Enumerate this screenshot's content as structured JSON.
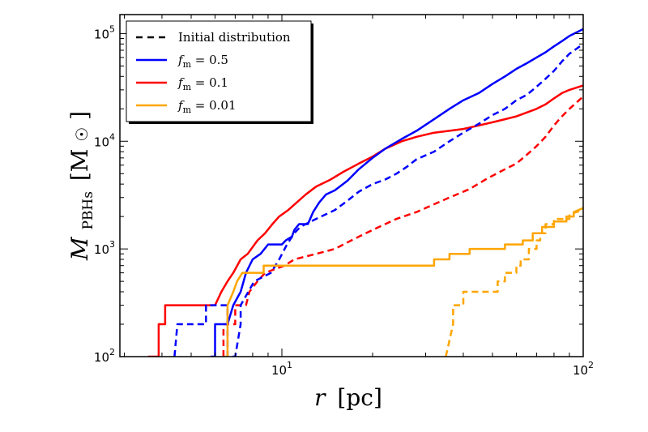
{
  "chart_data": {
    "type": "line",
    "xlabel": {
      "var": "r",
      "unit": "[pc]"
    },
    "ylabel": {
      "var": "M",
      "sub": "PBHs",
      "unit_open": "[M",
      "unit_sym": "☉",
      "unit_close": "]"
    },
    "xscale": "log",
    "yscale": "log",
    "xlim": [
      2.9,
      100
    ],
    "ylim": [
      100,
      150000
    ],
    "x_ticks": [
      {
        "value": 10,
        "base": "10",
        "exp": "1"
      },
      {
        "value": 100,
        "base": "10",
        "exp": "2"
      }
    ],
    "y_ticks": [
      {
        "value": 100,
        "base": "10",
        "exp": "2"
      },
      {
        "value": 1000,
        "base": "10",
        "exp": "3"
      },
      {
        "value": 10000,
        "base": "10",
        "exp": "4"
      },
      {
        "value": 100000,
        "base": "10",
        "exp": "5"
      }
    ],
    "legend": {
      "placement": "upper-left",
      "entries": [
        {
          "label": "Initial distribution",
          "style": "dashed",
          "color": "#000000"
        },
        {
          "label_var": "f",
          "label_sub": "m",
          "label_value": " = 0.5",
          "style": "solid",
          "color": "#0000ff"
        },
        {
          "label_var": "f",
          "label_sub": "m",
          "label_value": " = 0.1",
          "style": "solid",
          "color": "#ff0000"
        },
        {
          "label_var": "f",
          "label_sub": "m",
          "label_value": " = 0.01",
          "style": "solid",
          "color": "#ffa500"
        }
      ]
    },
    "series": [
      {
        "key": "fm0.1-evolved",
        "color": "#ff0000",
        "style": "solid",
        "points": [
          [
            3.6,
            100
          ],
          [
            3.9,
            100
          ],
          [
            3.9,
            200
          ],
          [
            4.1,
            200
          ],
          [
            4.1,
            300
          ],
          [
            6.0,
            300
          ],
          [
            6.3,
            400
          ],
          [
            6.6,
            500
          ],
          [
            6.9,
            600
          ],
          [
            7.3,
            800
          ],
          [
            7.7,
            900
          ],
          [
            8.3,
            1200
          ],
          [
            8.8,
            1400
          ],
          [
            9.3,
            1700
          ],
          [
            9.8,
            2000
          ],
          [
            10.5,
            2300
          ],
          [
            11.2,
            2700
          ],
          [
            12.0,
            3200
          ],
          [
            13.0,
            3800
          ],
          [
            14.5,
            4400
          ],
          [
            16.0,
            5200
          ],
          [
            18.0,
            6200
          ],
          [
            20.0,
            7200
          ],
          [
            22.0,
            8500
          ],
          [
            25.0,
            10000
          ],
          [
            28.0,
            11000
          ],
          [
            32.0,
            12000
          ],
          [
            36.0,
            12500
          ],
          [
            40.0,
            13000
          ],
          [
            45.0,
            14000
          ],
          [
            50.0,
            15000
          ],
          [
            55.0,
            16000
          ],
          [
            60.0,
            17000
          ],
          [
            65.0,
            18500
          ],
          [
            70.0,
            20000
          ],
          [
            75.0,
            22000
          ],
          [
            80.0,
            25000
          ],
          [
            85.0,
            28000
          ],
          [
            90.0,
            30000
          ],
          [
            100.0,
            33000
          ]
        ]
      },
      {
        "key": "fm0.1-initial",
        "color": "#ff0000",
        "style": "dashed",
        "points": [
          [
            6.4,
            100
          ],
          [
            6.4,
            200
          ],
          [
            7.0,
            200
          ],
          [
            7.0,
            300
          ],
          [
            7.6,
            300
          ],
          [
            7.8,
            400
          ],
          [
            8.3,
            500
          ],
          [
            8.8,
            600
          ],
          [
            10.2,
            700
          ],
          [
            11.0,
            800
          ],
          [
            13.0,
            900
          ],
          [
            15.0,
            1000
          ],
          [
            17.0,
            1200
          ],
          [
            19.0,
            1400
          ],
          [
            21.0,
            1600
          ],
          [
            24.0,
            1900
          ],
          [
            28.0,
            2200
          ],
          [
            32.0,
            2600
          ],
          [
            36.0,
            3000
          ],
          [
            42.0,
            3600
          ],
          [
            48.0,
            4500
          ],
          [
            55.0,
            5500
          ],
          [
            60.0,
            6200
          ],
          [
            65.0,
            7500
          ],
          [
            70.0,
            9000
          ],
          [
            75.0,
            11000
          ],
          [
            80.0,
            14000
          ],
          [
            85.0,
            17000
          ],
          [
            90.0,
            20000
          ],
          [
            100.0,
            26000
          ]
        ]
      },
      {
        "key": "fm0.5-evolved",
        "color": "#0000ff",
        "style": "solid",
        "points": [
          [
            5.8,
            100
          ],
          [
            6.0,
            100
          ],
          [
            6.0,
            200
          ],
          [
            6.6,
            200
          ],
          [
            6.9,
            300
          ],
          [
            7.3,
            400
          ],
          [
            7.6,
            600
          ],
          [
            8.0,
            800
          ],
          [
            8.5,
            900
          ],
          [
            9.0,
            1100
          ],
          [
            10.0,
            1100
          ],
          [
            10.3,
            1200
          ],
          [
            10.8,
            1300
          ],
          [
            11.0,
            1500
          ],
          [
            11.4,
            1700
          ],
          [
            12.2,
            1700
          ],
          [
            12.7,
            2200
          ],
          [
            13.3,
            2700
          ],
          [
            14.0,
            3200
          ],
          [
            15.0,
            3500
          ],
          [
            16.5,
            4300
          ],
          [
            18.0,
            5500
          ],
          [
            20.0,
            7000
          ],
          [
            22.0,
            8500
          ],
          [
            25.0,
            10500
          ],
          [
            28.0,
            12500
          ],
          [
            32.0,
            16000
          ],
          [
            36.0,
            20000
          ],
          [
            40.0,
            24000
          ],
          [
            45.0,
            28000
          ],
          [
            50.0,
            34000
          ],
          [
            55.0,
            40000
          ],
          [
            60.0,
            47000
          ],
          [
            65.0,
            53000
          ],
          [
            70.0,
            60000
          ],
          [
            75.0,
            67000
          ],
          [
            80.0,
            76000
          ],
          [
            85.0,
            85000
          ],
          [
            90.0,
            95000
          ],
          [
            100.0,
            110000
          ]
        ]
      },
      {
        "key": "fm0.5-initial",
        "color": "#0000ff",
        "style": "dashed",
        "points": [
          [
            4.4,
            100
          ],
          [
            4.5,
            200
          ],
          [
            5.6,
            200
          ],
          [
            5.6,
            300
          ],
          [
            6.6,
            300
          ],
          [
            6.6,
            100
          ],
          [
            7.0,
            100
          ],
          [
            7.3,
            200
          ],
          [
            7.3,
            300
          ],
          [
            8.1,
            500
          ],
          [
            9.2,
            600
          ],
          [
            9.8,
            800
          ],
          [
            10.4,
            1100
          ],
          [
            11.0,
            1400
          ],
          [
            11.5,
            1600
          ],
          [
            12.5,
            1800
          ],
          [
            13.5,
            2000
          ],
          [
            15.0,
            2300
          ],
          [
            16.5,
            2800
          ],
          [
            18.0,
            3400
          ],
          [
            20.0,
            4000
          ],
          [
            22.0,
            4400
          ],
          [
            24.0,
            5000
          ],
          [
            26.0,
            5800
          ],
          [
            28.0,
            6800
          ],
          [
            32.0,
            8000
          ],
          [
            36.0,
            10000
          ],
          [
            40.0,
            12000
          ],
          [
            45.0,
            14500
          ],
          [
            50.0,
            17500
          ],
          [
            55.0,
            20000
          ],
          [
            60.0,
            24000
          ],
          [
            65.0,
            27000
          ],
          [
            70.0,
            32000
          ],
          [
            75.0,
            38000
          ],
          [
            80.0,
            45000
          ],
          [
            85.0,
            55000
          ],
          [
            90.0,
            65000
          ],
          [
            100.0,
            80000
          ]
        ]
      },
      {
        "key": "fm0.01-evolved",
        "color": "#ffa500",
        "style": "solid",
        "points": [
          [
            6.4,
            100
          ],
          [
            6.6,
            100
          ],
          [
            6.6,
            300
          ],
          [
            6.9,
            400
          ],
          [
            7.1,
            500
          ],
          [
            7.4,
            600
          ],
          [
            8.7,
            600
          ],
          [
            8.7,
            700
          ],
          [
            31.0,
            700
          ],
          [
            32.0,
            700
          ],
          [
            32.0,
            800
          ],
          [
            36.0,
            800
          ],
          [
            36.0,
            900
          ],
          [
            42.0,
            900
          ],
          [
            42.0,
            1000
          ],
          [
            55.0,
            1000
          ],
          [
            55.0,
            1100
          ],
          [
            63.0,
            1100
          ],
          [
            63.0,
            1200
          ],
          [
            68.0,
            1200
          ],
          [
            68.0,
            1400
          ],
          [
            73.0,
            1400
          ],
          [
            73.0,
            1600
          ],
          [
            80.0,
            1600
          ],
          [
            80.0,
            1800
          ],
          [
            88.0,
            1800
          ],
          [
            88.0,
            2000
          ],
          [
            93.0,
            2000
          ],
          [
            93.0,
            2200
          ],
          [
            100.0,
            2400
          ]
        ]
      },
      {
        "key": "fm0.01-initial",
        "color": "#ffa500",
        "style": "dashed",
        "points": [
          [
            35.0,
            100
          ],
          [
            35.0,
            100
          ],
          [
            37.0,
            200
          ],
          [
            37.0,
            300
          ],
          [
            40.0,
            300
          ],
          [
            40.0,
            400
          ],
          [
            52.0,
            400
          ],
          [
            52.0,
            500
          ],
          [
            55.0,
            500
          ],
          [
            55.0,
            600
          ],
          [
            60.0,
            600
          ],
          [
            60.0,
            700
          ],
          [
            62.0,
            700
          ],
          [
            62.0,
            800
          ],
          [
            66.0,
            800
          ],
          [
            66.0,
            1000
          ],
          [
            70.0,
            1000
          ],
          [
            70.0,
            1200
          ],
          [
            72.0,
            1200
          ],
          [
            72.0,
            1400
          ],
          [
            75.0,
            1400
          ],
          [
            75.0,
            1700
          ],
          [
            80.0,
            1700
          ],
          [
            80.0,
            1900
          ],
          [
            90.0,
            1900
          ],
          [
            90.0,
            2100
          ],
          [
            100.0,
            2300
          ]
        ]
      }
    ]
  }
}
